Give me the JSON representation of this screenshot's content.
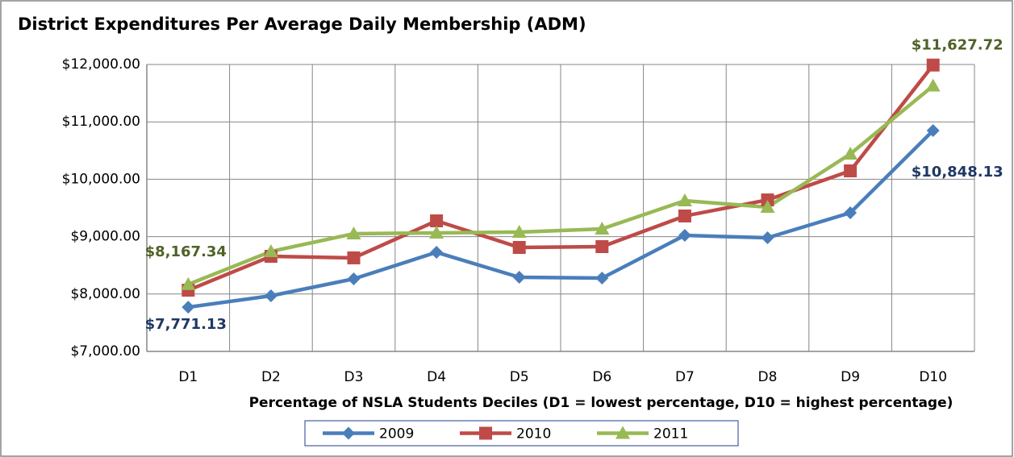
{
  "chart_data": {
    "type": "line",
    "title": "District Expenditures Per Average Daily Membership (ADM)",
    "x_label": "Percentage of NSLA Students Deciles (D1 = lowest percentage, D10 = highest percentage)",
    "categories": [
      "D1",
      "D2",
      "D3",
      "D4",
      "D5",
      "D6",
      "D7",
      "D8",
      "D9",
      "D10"
    ],
    "series": [
      {
        "name": "2009",
        "color": "#4a7ebb",
        "marker": "diamond",
        "values": [
          7771.13,
          7969,
          8264,
          8727,
          8292,
          8278,
          9022,
          8980,
          9416,
          10848.13
        ],
        "value_labels": [
          "$7,771.13",
          null,
          null,
          null,
          null,
          null,
          null,
          null,
          null,
          "$10,848.13"
        ],
        "label_color": "#1f3864"
      },
      {
        "name": "2010",
        "color": "#be4b48",
        "marker": "square",
        "values": [
          8067,
          8657,
          8630,
          9275,
          8812,
          8826,
          9360,
          9640,
          10146,
          11990
        ]
      },
      {
        "name": "2011",
        "color": "#98b954",
        "marker": "triangle",
        "values": [
          8167.34,
          8742,
          9051,
          9065,
          9079,
          9135,
          9626,
          9514,
          10441,
          11627.72
        ],
        "value_labels": [
          "$8,167.34",
          null,
          null,
          null,
          null,
          null,
          null,
          null,
          null,
          "$11,627.72"
        ],
        "label_color": "#4f6228"
      }
    ],
    "ylim": [
      7000,
      12000
    ],
    "yticks": [
      {
        "value": 7000,
        "label": "$7,000.00"
      },
      {
        "value": 8000,
        "label": "$8,000.00"
      },
      {
        "value": 9000,
        "label": "$9,000.00"
      },
      {
        "value": 10000,
        "label": "$10,000.00"
      },
      {
        "value": 11000,
        "label": "$11,000.00"
      },
      {
        "value": 12000,
        "label": "$12,000.00"
      }
    ],
    "grid": true,
    "legend": "bottom"
  }
}
